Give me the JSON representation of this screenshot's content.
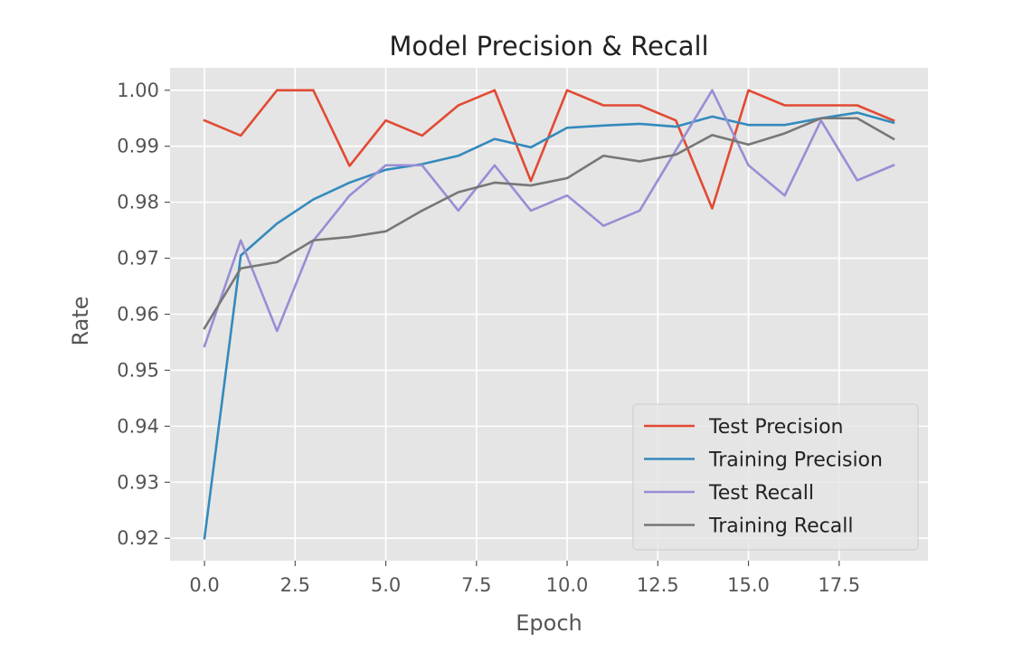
{
  "chart_data": {
    "type": "line",
    "title": "Model Precision & Recall",
    "xlabel": "Epoch",
    "ylabel": "Rate",
    "xlim": [
      -0.95,
      19.95
    ],
    "ylim": [
      0.916,
      1.004
    ],
    "x": [
      0,
      1,
      2,
      3,
      4,
      5,
      6,
      7,
      8,
      9,
      10,
      11,
      12,
      13,
      14,
      15,
      16,
      17,
      18,
      19
    ],
    "x_ticks": [
      0.0,
      2.5,
      5.0,
      7.5,
      10.0,
      12.5,
      15.0,
      17.5
    ],
    "x_tick_labels": [
      "0.0",
      "2.5",
      "5.0",
      "7.5",
      "10.0",
      "12.5",
      "15.0",
      "17.5"
    ],
    "y_ticks": [
      0.92,
      0.93,
      0.94,
      0.95,
      0.96,
      0.97,
      0.98,
      0.99,
      1.0
    ],
    "y_tick_labels": [
      "0.92",
      "0.93",
      "0.94",
      "0.95",
      "0.96",
      "0.97",
      "0.98",
      "0.99",
      "1.00"
    ],
    "grid": true,
    "legend_position": "lower-right",
    "style": {
      "plot_background": "#e5e5e5",
      "grid_color": "#ffffff",
      "tick_label_color": "#555555",
      "title_color": "#222222"
    },
    "series": [
      {
        "name": "Test Precision",
        "color": "#e24a33",
        "values": [
          0.9946,
          0.9919,
          1.0,
          1.0,
          0.9865,
          0.9946,
          0.9919,
          0.9973,
          1.0,
          0.9838,
          1.0,
          0.9973,
          0.9973,
          0.9946,
          0.9789,
          1.0,
          0.9973,
          0.9973,
          0.9973,
          0.9946
        ]
      },
      {
        "name": "Training Precision",
        "color": "#348abd",
        "values": [
          0.92,
          0.9705,
          0.9762,
          0.9805,
          0.9835,
          0.9858,
          0.9868,
          0.9883,
          0.9913,
          0.9898,
          0.9933,
          0.9937,
          0.994,
          0.9935,
          0.9953,
          0.9938,
          0.9938,
          0.995,
          0.996,
          0.9942
        ]
      },
      {
        "name": "Test Recall",
        "color": "#988ed5",
        "values": [
          0.9543,
          0.9732,
          0.957,
          0.9731,
          0.9812,
          0.9866,
          0.9866,
          0.9785,
          0.9866,
          0.9785,
          0.9812,
          0.9758,
          0.9785,
          0.9893,
          1.0,
          0.9866,
          0.9812,
          0.9946,
          0.9839,
          0.9866
        ]
      },
      {
        "name": "Training Recall",
        "color": "#777777",
        "values": [
          0.9575,
          0.9682,
          0.9693,
          0.9732,
          0.9738,
          0.9748,
          0.9785,
          0.9818,
          0.9835,
          0.983,
          0.9843,
          0.9883,
          0.9873,
          0.9885,
          0.992,
          0.9903,
          0.9923,
          0.995,
          0.995,
          0.9913
        ]
      }
    ]
  }
}
